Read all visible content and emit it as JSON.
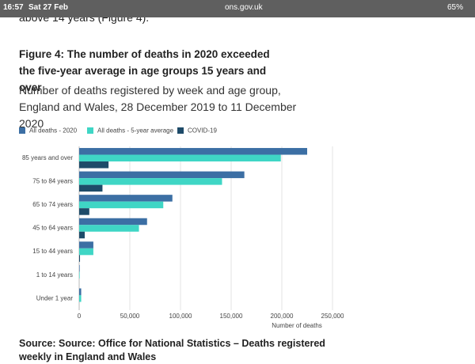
{
  "status_bar": {
    "time": "16:57",
    "date": "Sat 27 Feb",
    "url": "ons.gov.uk",
    "battery": "65%"
  },
  "page_text": "above 14 years (Figure 4).",
  "chart_data": {
    "type": "bar",
    "orientation": "horizontal",
    "title": "Figure 4: The number of deaths in 2020 exceeded the five-year average in age groups 15 years and over",
    "subtitle": "Number of deaths registered by week and age group, England and Wales, 28 December 2019 to 11 December 2020",
    "categories": [
      "85 years and over",
      "75 to 84 years",
      "65 to 74 years",
      "45 to 64 years",
      "15 to 44 years",
      "1 to 14 years",
      "Under 1 year"
    ],
    "series": [
      {
        "name": "All deaths - 2020",
        "color": "#3c6fa4",
        "values": [
          225000,
          163000,
          92000,
          67000,
          14000,
          500,
          2000
        ]
      },
      {
        "name": "All deaths - 5-year average",
        "color": "#3fd6c5",
        "values": [
          199000,
          141000,
          83000,
          59000,
          14000,
          500,
          2000
        ]
      },
      {
        "name": "COVID-19",
        "color": "#1e4b69",
        "values": [
          29000,
          23000,
          10000,
          5500,
          800,
          10,
          5
        ]
      }
    ],
    "xlabel": "Number of deaths",
    "xlim": [
      0,
      250000
    ],
    "xticks": [
      0,
      {
        "value": 50000,
        "label": "50,000"
      },
      {
        "value": 100000,
        "label": "100,000"
      },
      {
        "value": 150000,
        "label": "150,000"
      },
      {
        "value": 200000,
        "label": "200,000"
      },
      {
        "value": 250000,
        "label": "250,000"
      }
    ],
    "grid": true,
    "legend": "top"
  },
  "source": "Source: Source: Office for National Statistics – Deaths registered weekly in England and Wales"
}
